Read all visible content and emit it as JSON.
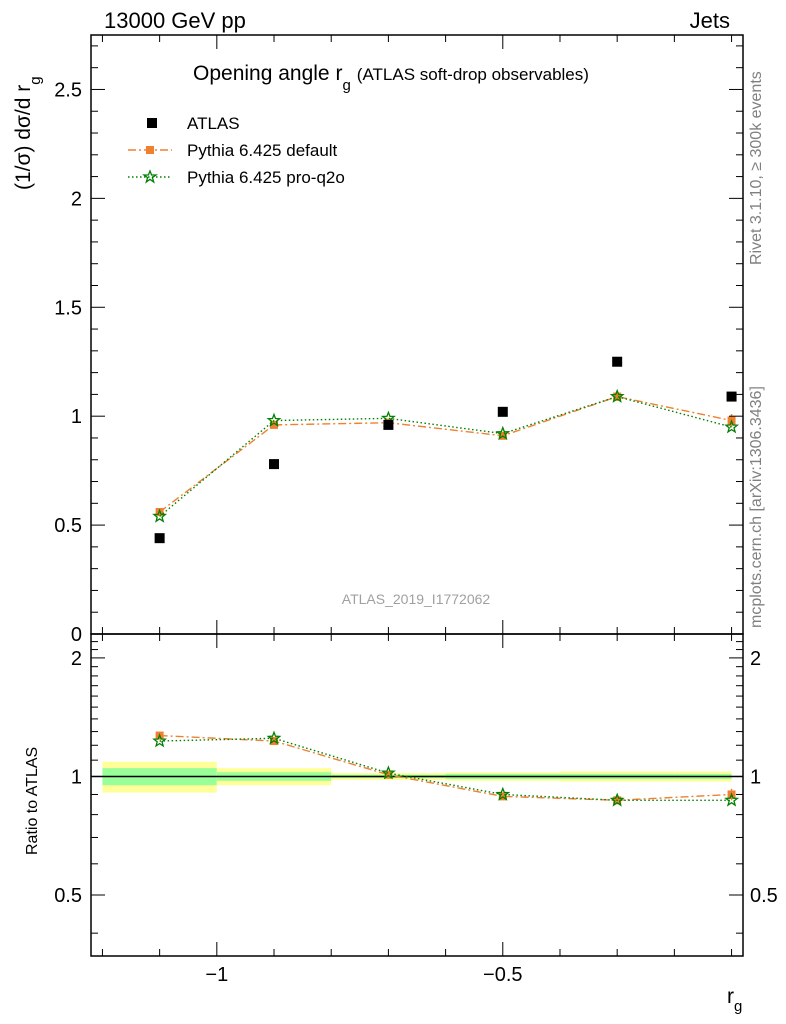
{
  "header": {
    "left": "13000 GeV pp",
    "right": "Jets"
  },
  "side_text": {
    "rivet": "Rivet 3.1.10, ≥ 300k events",
    "mcplots": "mcplots.cern.ch [arXiv:1306.3436]"
  },
  "colors": {
    "atlas": "#000000",
    "pythia_default": "#f08030",
    "pythia_proq2o": "#008000",
    "band_outer": "#ffff99",
    "band_inner": "#99ff99"
  },
  "chart_data": [
    {
      "type": "scatter",
      "panel": "main",
      "title": "Opening angle r",
      "title_subscript": "g",
      "title_suffix": "(ATLAS soft-drop observables)",
      "ylabel": "(1/σ) dσ/d r",
      "ylabel_subscript": "g",
      "watermark": "ATLAS_2019_I1772062",
      "xlim": [
        -1.22,
        -0.08
      ],
      "ylim": [
        0,
        2.75
      ],
      "yticks": [
        0,
        0.5,
        1,
        1.5,
        2,
        2.5
      ],
      "ytick_labels": [
        "0",
        "0.5",
        "1",
        "1.5",
        "2",
        "2.5"
      ],
      "series": [
        {
          "name": "ATLAS",
          "style": "square",
          "x": [
            -1.1,
            -0.9,
            -0.7,
            -0.5,
            -0.3,
            -0.1
          ],
          "y": [
            0.44,
            0.78,
            0.96,
            1.02,
            1.25,
            1.09
          ]
        },
        {
          "name": "Pythia 6.425 default",
          "style": "dashdot",
          "x": [
            -1.1,
            -0.9,
            -0.7,
            -0.5,
            -0.3,
            -0.1
          ],
          "y": [
            0.56,
            0.96,
            0.97,
            0.91,
            1.09,
            0.98
          ],
          "yerr": [
            0.015,
            0.01,
            0.01,
            0.01,
            0.02,
            0.03
          ]
        },
        {
          "name": "Pythia 6.425 pro-q2o",
          "style": "dotted",
          "x": [
            -1.1,
            -0.9,
            -0.7,
            -0.5,
            -0.3,
            -0.1
          ],
          "y": [
            0.54,
            0.98,
            0.99,
            0.92,
            1.09,
            0.95
          ]
        }
      ]
    },
    {
      "type": "line",
      "panel": "ratio",
      "ylabel": "Ratio to ATLAS",
      "xlabel": "r",
      "xlabel_subscript": "g",
      "xlim": [
        -1.22,
        -0.08
      ],
      "ylim": [
        0.35,
        2.3
      ],
      "yticks": [
        0.5,
        1,
        2
      ],
      "ytick_labels": [
        "0.5",
        "1",
        "2"
      ],
      "xticks": [
        -1,
        -0.5
      ],
      "xtick_labels": [
        "−1",
        "−0.5"
      ],
      "bins": [
        [
          -1.2,
          -1.0
        ],
        [
          -1.0,
          -0.8
        ],
        [
          -0.8,
          -0.6
        ],
        [
          -0.6,
          -0.4
        ],
        [
          -0.4,
          -0.2
        ],
        [
          -0.2,
          -0.1
        ]
      ],
      "band_outer": [
        [
          0.91,
          1.09
        ],
        [
          0.95,
          1.05
        ],
        [
          0.98,
          1.02
        ],
        [
          0.975,
          1.025
        ],
        [
          0.97,
          1.03
        ],
        [
          0.97,
          1.03
        ]
      ],
      "band_inner": [
        [
          0.95,
          1.05
        ],
        [
          0.975,
          1.025
        ],
        [
          0.99,
          1.01
        ],
        [
          0.985,
          1.015
        ],
        [
          0.985,
          1.015
        ],
        [
          0.985,
          1.015
        ]
      ],
      "series": [
        {
          "name": "Pythia 6.425 default",
          "x": [
            -1.1,
            -0.9,
            -0.7,
            -0.5,
            -0.3,
            -0.1
          ],
          "y": [
            1.27,
            1.23,
            1.01,
            0.89,
            0.87,
            0.9
          ],
          "yerr": [
            0.02,
            0.015,
            0.01,
            0.01,
            0.01,
            0.03
          ]
        },
        {
          "name": "Pythia 6.425 pro-q2o",
          "x": [
            -1.1,
            -0.9,
            -0.7,
            -0.5,
            -0.3,
            -0.1
          ],
          "y": [
            1.23,
            1.25,
            1.02,
            0.9,
            0.87,
            0.87
          ]
        }
      ]
    }
  ]
}
